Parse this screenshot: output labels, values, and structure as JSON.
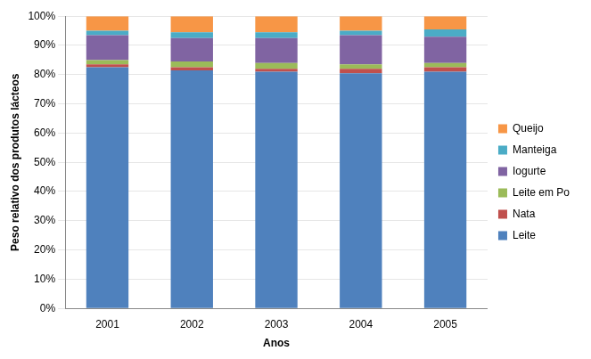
{
  "chart_data": {
    "type": "bar",
    "stacked": true,
    "categories": [
      "2001",
      "2002",
      "2003",
      "2004",
      "2005"
    ],
    "series": [
      {
        "name": "Leite",
        "color": "#4f81bd",
        "values": [
          82.5,
          81.5,
          81,
          80.5,
          81
        ]
      },
      {
        "name": "Nata",
        "color": "#c0504d",
        "values": [
          1,
          1,
          1,
          1.5,
          1.5
        ]
      },
      {
        "name": "Leite em Po",
        "color": "#9bbb59",
        "values": [
          1.5,
          2,
          2,
          1.5,
          1.5
        ]
      },
      {
        "name": "Iogurte",
        "color": "#8064a2",
        "values": [
          8.5,
          8,
          8.5,
          10,
          9
        ]
      },
      {
        "name": "Manteiga",
        "color": "#4bacc6",
        "values": [
          1.5,
          2,
          2,
          1.5,
          2.5
        ]
      },
      {
        "name": "Queijo",
        "color": "#f79646",
        "values": [
          5,
          5.5,
          5.5,
          5,
          4.5
        ]
      }
    ],
    "x_label": "Anos",
    "y_label": "Peso relativo dos produtos lácteos",
    "ylim": [
      0,
      100
    ],
    "yticks": [
      {
        "value": 0,
        "label": "0%"
      },
      {
        "value": 10,
        "label": "10%"
      },
      {
        "value": 20,
        "label": "20%"
      },
      {
        "value": 30,
        "label": "30%"
      },
      {
        "value": 40,
        "label": "40%"
      },
      {
        "value": 50,
        "label": "50%"
      },
      {
        "value": 60,
        "label": "60%"
      },
      {
        "value": 70,
        "label": "70%"
      },
      {
        "value": 80,
        "label": "80%"
      },
      {
        "value": 90,
        "label": "90%"
      },
      {
        "value": 100,
        "label": "100%"
      }
    ],
    "grid": true,
    "legend": "right"
  }
}
